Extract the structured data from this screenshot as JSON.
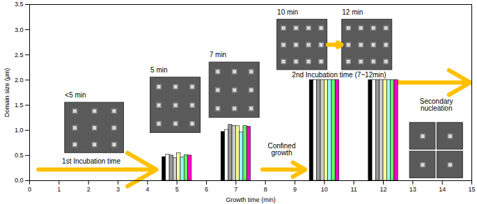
{
  "chart_data": {
    "type": "bar",
    "xlabel": "Growth time (min)",
    "ylabel": "Domain size (μm)",
    "x": [
      5,
      7,
      10,
      12
    ],
    "series": [
      {
        "color": "#000000",
        "values": [
          0.47,
          0.97,
          2.0,
          2.0
        ]
      },
      {
        "color": "#ffffff",
        "values": [
          0.52,
          1.01,
          2.0,
          2.0
        ]
      },
      {
        "color": "#999999",
        "values": [
          0.5,
          1.11,
          2.0,
          2.0
        ]
      },
      {
        "color": "#cccccc",
        "values": [
          0.45,
          1.09,
          2.0,
          2.0
        ]
      },
      {
        "color": "#ffff99",
        "values": [
          0.55,
          1.09,
          2.0,
          2.0
        ]
      },
      {
        "color": "#99ffff",
        "values": [
          0.46,
          0.96,
          2.0,
          2.0
        ]
      },
      {
        "color": "#66ff66",
        "values": [
          0.51,
          1.09,
          2.0,
          2.0
        ]
      },
      {
        "color": "#ff00cc",
        "values": [
          0.5,
          1.07,
          2.0,
          2.0
        ]
      }
    ],
    "xlim": [
      0,
      15
    ],
    "xticks": [
      0,
      1,
      2,
      3,
      4,
      5,
      6,
      7,
      8,
      9,
      10,
      11,
      12,
      13,
      14,
      15
    ],
    "ylim": [
      0,
      3.5
    ],
    "yticks": [
      {
        "value": 0,
        "label": "0.0"
      },
      0.5,
      {
        "value": 1,
        "label": "1.0"
      },
      1.5,
      {
        "value": 2,
        "label": "2.0"
      },
      2.5,
      {
        "value": 3,
        "label": "3.0"
      },
      3.5
    ],
    "annotations": [
      "<5 min",
      "5 min",
      "7 min",
      "10 min",
      "12 min",
      "1st Incubation time",
      "Confined growth",
      "2nd Incubation time (7~12min)",
      "Secondary nucleation"
    ]
  }
}
